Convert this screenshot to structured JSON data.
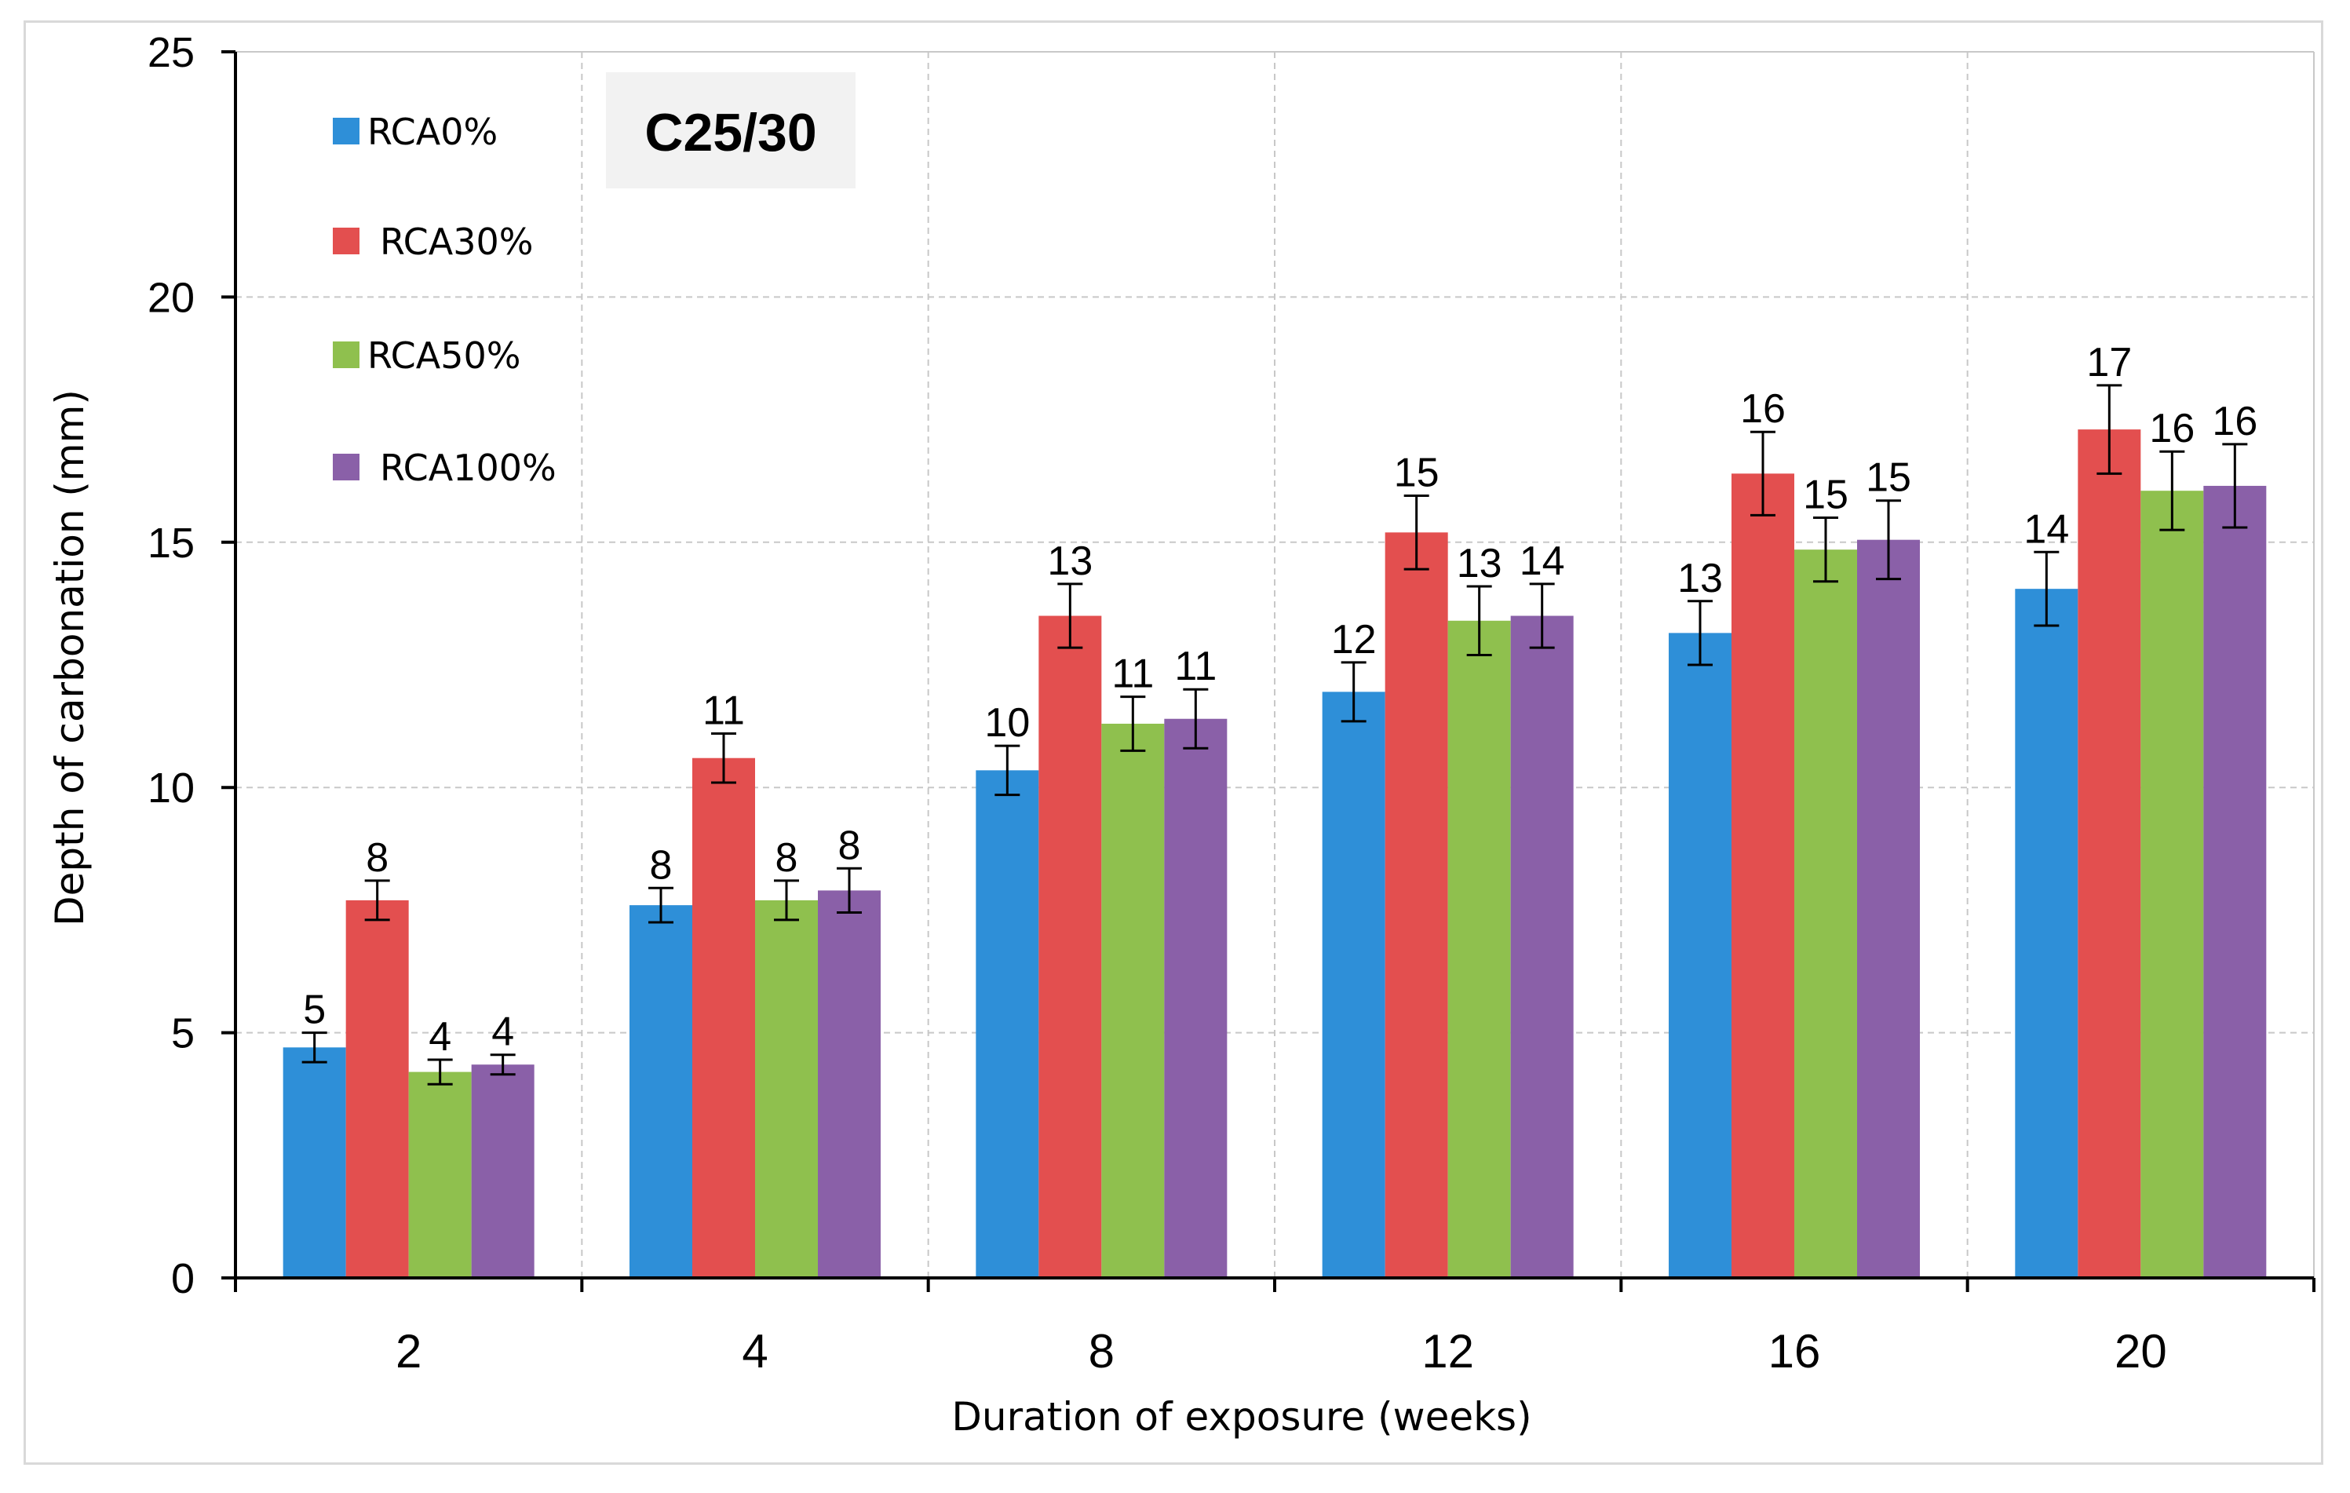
{
  "chart_data": {
    "type": "bar",
    "annotation": "C25/30",
    "xlabel": "Duration of exposure (weeks)",
    "ylabel": "Depth of carbonation (mm)",
    "ylim": [
      0,
      25
    ],
    "yticks": [
      0,
      5,
      10,
      15,
      20,
      25
    ],
    "grid": true,
    "legend_position": "top-left",
    "error_bars": true,
    "categories": [
      "2",
      "4",
      "8",
      "12",
      "16",
      "20"
    ],
    "series": [
      {
        "name": "RCA0%",
        "color": "#2e8fd8",
        "values": [
          4.7,
          7.6,
          10.35,
          11.95,
          13.15,
          14.05
        ],
        "errors": [
          0.3,
          0.35,
          0.5,
          0.6,
          0.65,
          0.75
        ],
        "labels": [
          "5",
          "8",
          "10",
          "12",
          "13",
          "14"
        ]
      },
      {
        "name": "RCA30%",
        "color": "#e34f4f",
        "values": [
          7.7,
          10.6,
          13.5,
          15.2,
          16.4,
          17.3
        ],
        "errors": [
          0.4,
          0.5,
          0.65,
          0.75,
          0.85,
          0.9
        ],
        "labels": [
          "8",
          "11",
          "13",
          "15",
          "16",
          "17"
        ]
      },
      {
        "name": "RCA50%",
        "color": "#8fc04e",
        "values": [
          4.2,
          7.7,
          11.3,
          13.4,
          14.85,
          16.05
        ],
        "errors": [
          0.25,
          0.4,
          0.55,
          0.7,
          0.65,
          0.8
        ],
        "labels": [
          "4",
          "8",
          "11",
          "13",
          "15",
          "16"
        ]
      },
      {
        "name": "RCA100%",
        "color": "#8a60a8",
        "values": [
          4.35,
          7.9,
          11.4,
          13.5,
          15.05,
          16.15
        ],
        "errors": [
          0.2,
          0.45,
          0.6,
          0.65,
          0.8,
          0.85
        ],
        "labels": [
          "4",
          "8",
          "11",
          "14",
          "15",
          "16"
        ]
      }
    ]
  }
}
